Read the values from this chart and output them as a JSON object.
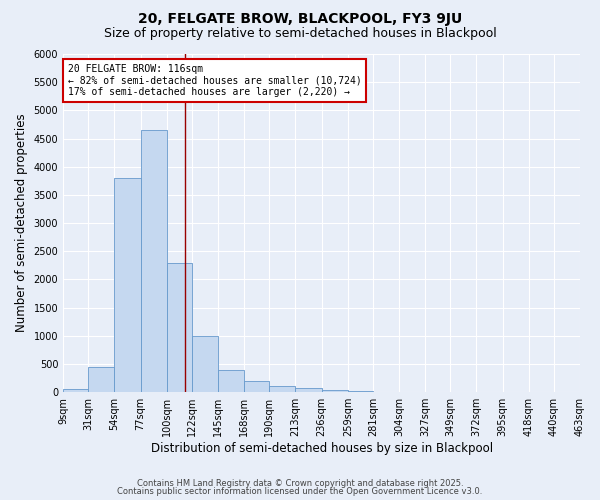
{
  "title": "20, FELGATE BROW, BLACKPOOL, FY3 9JU",
  "subtitle": "Size of property relative to semi-detached houses in Blackpool",
  "xlabel": "Distribution of semi-detached houses by size in Blackpool",
  "ylabel": "Number of semi-detached properties",
  "footnote1": "Contains HM Land Registry data © Crown copyright and database right 2025.",
  "footnote2": "Contains public sector information licensed under the Open Government Licence v3.0.",
  "bin_labels": [
    "9sqm",
    "31sqm",
    "54sqm",
    "77sqm",
    "100sqm",
    "122sqm",
    "145sqm",
    "168sqm",
    "190sqm",
    "213sqm",
    "236sqm",
    "259sqm",
    "281sqm",
    "304sqm",
    "327sqm",
    "349sqm",
    "372sqm",
    "395sqm",
    "418sqm",
    "440sqm",
    "463sqm"
  ],
  "bin_edges": [
    9,
    31,
    54,
    77,
    100,
    122,
    145,
    168,
    190,
    213,
    236,
    259,
    281,
    304,
    327,
    349,
    372,
    395,
    418,
    440,
    463
  ],
  "bar_heights": [
    50,
    450,
    3800,
    4650,
    2300,
    1000,
    400,
    200,
    110,
    70,
    40,
    15,
    5,
    0,
    0,
    0,
    0,
    0,
    0,
    0
  ],
  "bar_color": "#c5d8f0",
  "bar_edge_color": "#6699cc",
  "property_value": 116,
  "vertical_line_color": "#990000",
  "annotation_text": "20 FELGATE BROW: 116sqm\n← 82% of semi-detached houses are smaller (10,724)\n17% of semi-detached houses are larger (2,220) →",
  "annotation_box_color": "#ffffff",
  "annotation_box_edge_color": "#cc0000",
  "ylim": [
    0,
    6000
  ],
  "yticks": [
    0,
    500,
    1000,
    1500,
    2000,
    2500,
    3000,
    3500,
    4000,
    4500,
    5000,
    5500,
    6000
  ],
  "bg_color": "#e8eef8",
  "plot_bg_color": "#e8eef8",
  "grid_color": "#ffffff",
  "title_fontsize": 10,
  "subtitle_fontsize": 9,
  "axis_label_fontsize": 8.5,
  "tick_fontsize": 7,
  "footnote_fontsize": 6,
  "annotation_fontsize": 7
}
